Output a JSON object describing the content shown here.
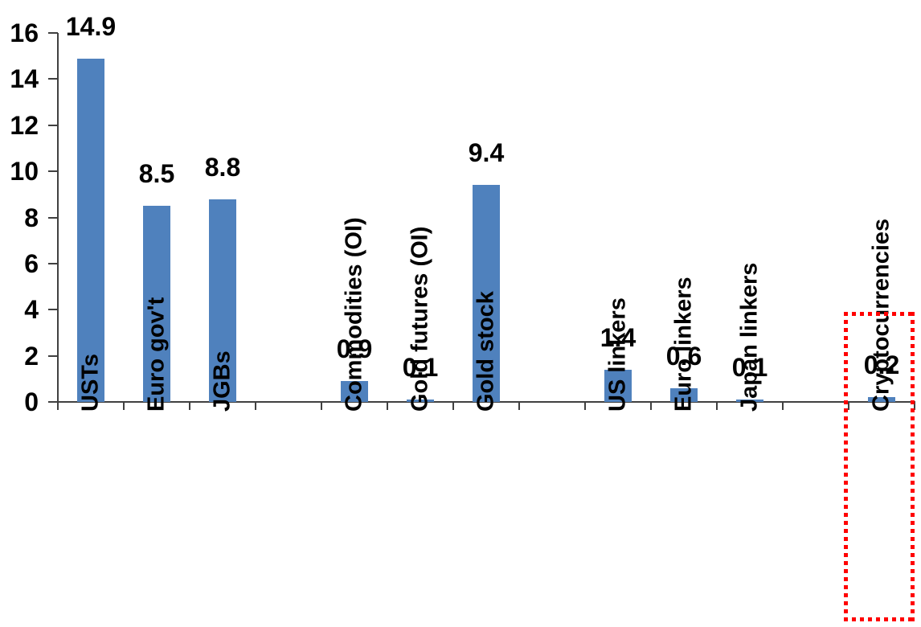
{
  "chart_data": {
    "type": "bar",
    "categories": [
      "USTs",
      "Euro gov't",
      "JGBs",
      "Commodities (OI)",
      "Gold futures (OI)",
      "Gold stock",
      "US linkers",
      "Euro linkers",
      "Japan linkers",
      "Cryptocurrencies"
    ],
    "values": [
      14.9,
      8.5,
      8.8,
      0.9,
      0.1,
      9.4,
      1.4,
      0.6,
      0.1,
      0.2
    ],
    "value_labels": [
      "14.9",
      "8.5",
      "8.8",
      "0.9",
      "0.1",
      "9.4",
      "1.4",
      "0.6",
      "0.1",
      "0.2"
    ],
    "group_sizes": [
      3,
      3,
      3,
      1
    ],
    "highlighted_index": 9,
    "highlighted_category": "Cryptocurrencies",
    "yticks": [
      0,
      2,
      4,
      6,
      8,
      10,
      12,
      14,
      16
    ],
    "ytick_labels": [
      "0",
      "2",
      "4",
      "6",
      "8",
      "10",
      "12",
      "14",
      "16"
    ],
    "ylim": [
      0,
      16
    ],
    "xlabel": "",
    "ylabel": "",
    "grid": "off",
    "legend": "none",
    "bar_color": "#4F81BD",
    "highlight_box_color": "#FF0000",
    "axis_color": "#404040",
    "text_color": "#000000"
  }
}
